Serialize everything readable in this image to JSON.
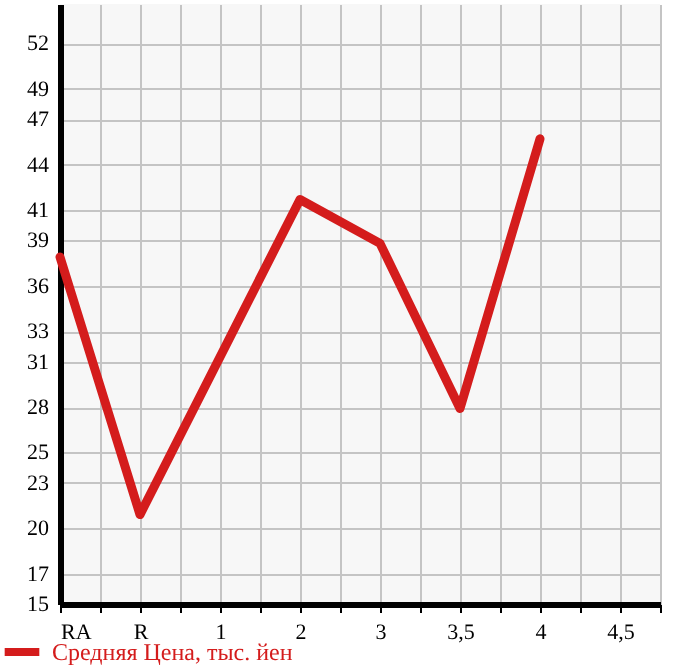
{
  "chart_data": {
    "type": "line",
    "categories": [
      "RA",
      "R",
      "1",
      "2",
      "3",
      "3,5",
      "4",
      "4,5"
    ],
    "series": [
      {
        "name": "Средняя Цена, тыс. йен",
        "color": "#d41c1c",
        "values": [
          37.9,
          20.9,
          31.3,
          41.7,
          38.8,
          27.9,
          45.7,
          null
        ]
      }
    ],
    "ylim": [
      15,
      54.6
    ],
    "yticks": [
      15,
      17,
      20,
      23,
      25,
      28,
      31,
      33,
      36,
      39,
      41,
      44,
      47,
      49,
      52
    ],
    "grid": true,
    "legend": "bottom",
    "marker": "none",
    "line_style": "solid"
  }
}
